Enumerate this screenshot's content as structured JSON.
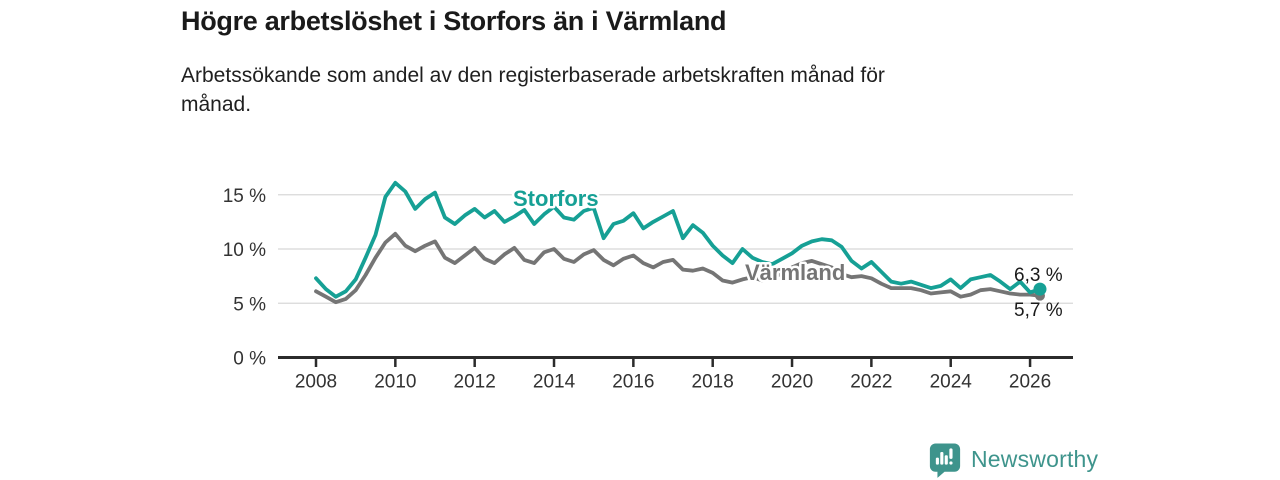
{
  "branding": {
    "name": "Newsworthy",
    "color": "#3E948C"
  },
  "chart_data": {
    "type": "line",
    "title": "Högre arbetslöshet i Storfors än i Värmland",
    "subtitle": "Arbetssökande som andel av den registerbaserade arbetskraften månad för\nmånad.",
    "grid": "horizontal",
    "legend": "inline-labels",
    "ylim": [
      0,
      17
    ],
    "xlim": [
      2007.05,
      2027.1
    ],
    "y_ticks": [
      {
        "value": 0,
        "label": "0 %"
      },
      {
        "value": 5,
        "label": "5 %"
      },
      {
        "value": 10,
        "label": "10 %"
      },
      {
        "value": 15,
        "label": "15 %"
      }
    ],
    "x_ticks": [
      {
        "value": 2008,
        "label": "2008"
      },
      {
        "value": 2010,
        "label": "2010"
      },
      {
        "value": 2012,
        "label": "2012"
      },
      {
        "value": 2014,
        "label": "2014"
      },
      {
        "value": 2016,
        "label": "2016"
      },
      {
        "value": 2018,
        "label": "2018"
      },
      {
        "value": 2020,
        "label": "2020"
      },
      {
        "value": 2022,
        "label": "2022"
      },
      {
        "value": 2024,
        "label": "2024"
      },
      {
        "value": 2026,
        "label": "2026"
      }
    ],
    "x": [
      2008,
      2008.25,
      2008.5,
      2008.75,
      2009,
      2009.25,
      2009.5,
      2009.75,
      2010,
      2010.25,
      2010.5,
      2010.75,
      2011,
      2011.25,
      2011.5,
      2011.75,
      2012,
      2012.25,
      2012.5,
      2012.75,
      2013,
      2013.25,
      2013.5,
      2013.75,
      2014,
      2014.25,
      2014.5,
      2014.75,
      2015,
      2015.25,
      2015.5,
      2015.75,
      2016,
      2016.25,
      2016.5,
      2016.75,
      2017,
      2017.25,
      2017.5,
      2017.75,
      2018,
      2018.25,
      2018.5,
      2018.75,
      2019,
      2019.25,
      2019.5,
      2019.75,
      2020,
      2020.25,
      2020.5,
      2020.75,
      2021,
      2021.25,
      2021.5,
      2021.75,
      2022,
      2022.25,
      2022.5,
      2022.75,
      2023,
      2023.25,
      2023.5,
      2023.75,
      2024,
      2024.25,
      2024.5,
      2024.75,
      2025,
      2025.25,
      2025.5,
      2025.75,
      2026,
      2026.25
    ],
    "series": [
      {
        "name": "Värmland",
        "color": "#757575",
        "end_label": "5,7 %",
        "end_value": 5.7,
        "values": [
          6.1,
          5.6,
          5.1,
          5.4,
          6.2,
          7.6,
          9.2,
          10.6,
          11.4,
          10.3,
          9.8,
          10.3,
          10.7,
          9.2,
          8.7,
          9.4,
          10.1,
          9.1,
          8.7,
          9.5,
          10.1,
          9.0,
          8.7,
          9.7,
          10.0,
          9.1,
          8.8,
          9.5,
          9.9,
          9.0,
          8.5,
          9.1,
          9.4,
          8.7,
          8.3,
          8.8,
          9.0,
          8.1,
          8.0,
          8.2,
          7.8,
          7.1,
          6.9,
          7.2,
          7.4,
          7.1,
          7.3,
          7.8,
          8.3,
          8.7,
          8.9,
          8.6,
          8.3,
          7.7,
          7.4,
          7.5,
          7.3,
          6.8,
          6.4,
          6.4,
          6.4,
          6.2,
          5.9,
          6.0,
          6.1,
          5.6,
          5.8,
          6.2,
          6.3,
          6.1,
          5.9,
          5.8,
          5.8,
          5.7
        ]
      },
      {
        "name": "Storfors",
        "color": "#16A095",
        "end_label": "6,3 %",
        "end_value": 6.3,
        "values": [
          7.3,
          6.3,
          5.6,
          6.1,
          7.2,
          9.2,
          11.3,
          14.8,
          16.1,
          15.3,
          13.7,
          14.6,
          15.2,
          12.9,
          12.3,
          13.1,
          13.7,
          12.9,
          13.5,
          12.5,
          13.0,
          13.6,
          12.3,
          13.2,
          13.9,
          12.9,
          12.7,
          13.5,
          13.8,
          11.0,
          12.3,
          12.6,
          13.3,
          11.9,
          12.5,
          13.0,
          13.5,
          11.0,
          12.2,
          11.5,
          10.3,
          9.4,
          8.7,
          10.0,
          9.2,
          8.8,
          8.6,
          9.1,
          9.6,
          10.3,
          10.7,
          10.9,
          10.8,
          10.2,
          8.9,
          8.2,
          8.8,
          7.9,
          7.0,
          6.8,
          7.0,
          6.7,
          6.4,
          6.6,
          7.2,
          6.4,
          7.2,
          7.4,
          7.6,
          7.0,
          6.3,
          7.0,
          6.0,
          6.3
        ]
      }
    ]
  }
}
